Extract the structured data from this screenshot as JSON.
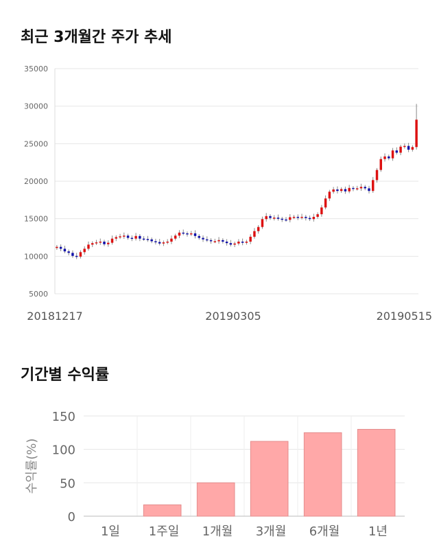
{
  "sections": {
    "price_trend_title": "최근 3개월간 주가 추세",
    "returns_title": "기간별 수익률"
  },
  "chart_data": [
    {
      "type": "candlestick",
      "ylim": [
        5000,
        35000
      ],
      "yticks": [
        5000,
        10000,
        15000,
        20000,
        25000,
        30000,
        35000
      ],
      "ytick_labels": [
        "5000",
        "10000",
        "15000",
        "20000",
        "25000",
        "30000",
        "35000"
      ],
      "xtick_labels": [
        "20181217",
        "20190305",
        "20190515"
      ],
      "grid": true,
      "colors": {
        "up": "#dd1111",
        "down": "#1111aa"
      },
      "closes": [
        11250,
        11000,
        10650,
        10450,
        10050,
        9950,
        10550,
        11000,
        11550,
        11750,
        11850,
        11950,
        11600,
        11800,
        12350,
        12550,
        12650,
        12750,
        12450,
        12350,
        12700,
        12350,
        12300,
        12250,
        12000,
        11900,
        11700,
        11850,
        11950,
        12350,
        12750,
        13150,
        13050,
        12950,
        13050,
        12700,
        12450,
        12250,
        12150,
        12000,
        12000,
        12150,
        11950,
        11750,
        11550,
        11700,
        11950,
        11800,
        11950,
        12600,
        13350,
        13900,
        14950,
        15350,
        15100,
        15150,
        15000,
        14900,
        14850,
        15200,
        15250,
        15150,
        15250,
        15100,
        14950,
        15250,
        15600,
        16500,
        17700,
        18600,
        18900,
        18700,
        18950,
        18650,
        19100,
        19000,
        19050,
        19250,
        19050,
        18700,
        20150,
        21500,
        22950,
        23300,
        23050,
        24100,
        23800,
        24600,
        24700,
        24200,
        24550,
        28200
      ]
    },
    {
      "type": "bar",
      "categories": [
        "1일",
        "1주일",
        "1개월",
        "3개월",
        "6개월",
        "1년"
      ],
      "values": [
        0,
        17,
        50,
        112,
        125,
        130
      ],
      "ylabel": "수익률(%)",
      "ylim": [
        0,
        150
      ],
      "yticks": [
        0,
        50,
        100,
        150
      ],
      "grid": true,
      "colors": {
        "bar": "#ffa8a8",
        "bar_edge": "#e48c8c"
      }
    }
  ]
}
